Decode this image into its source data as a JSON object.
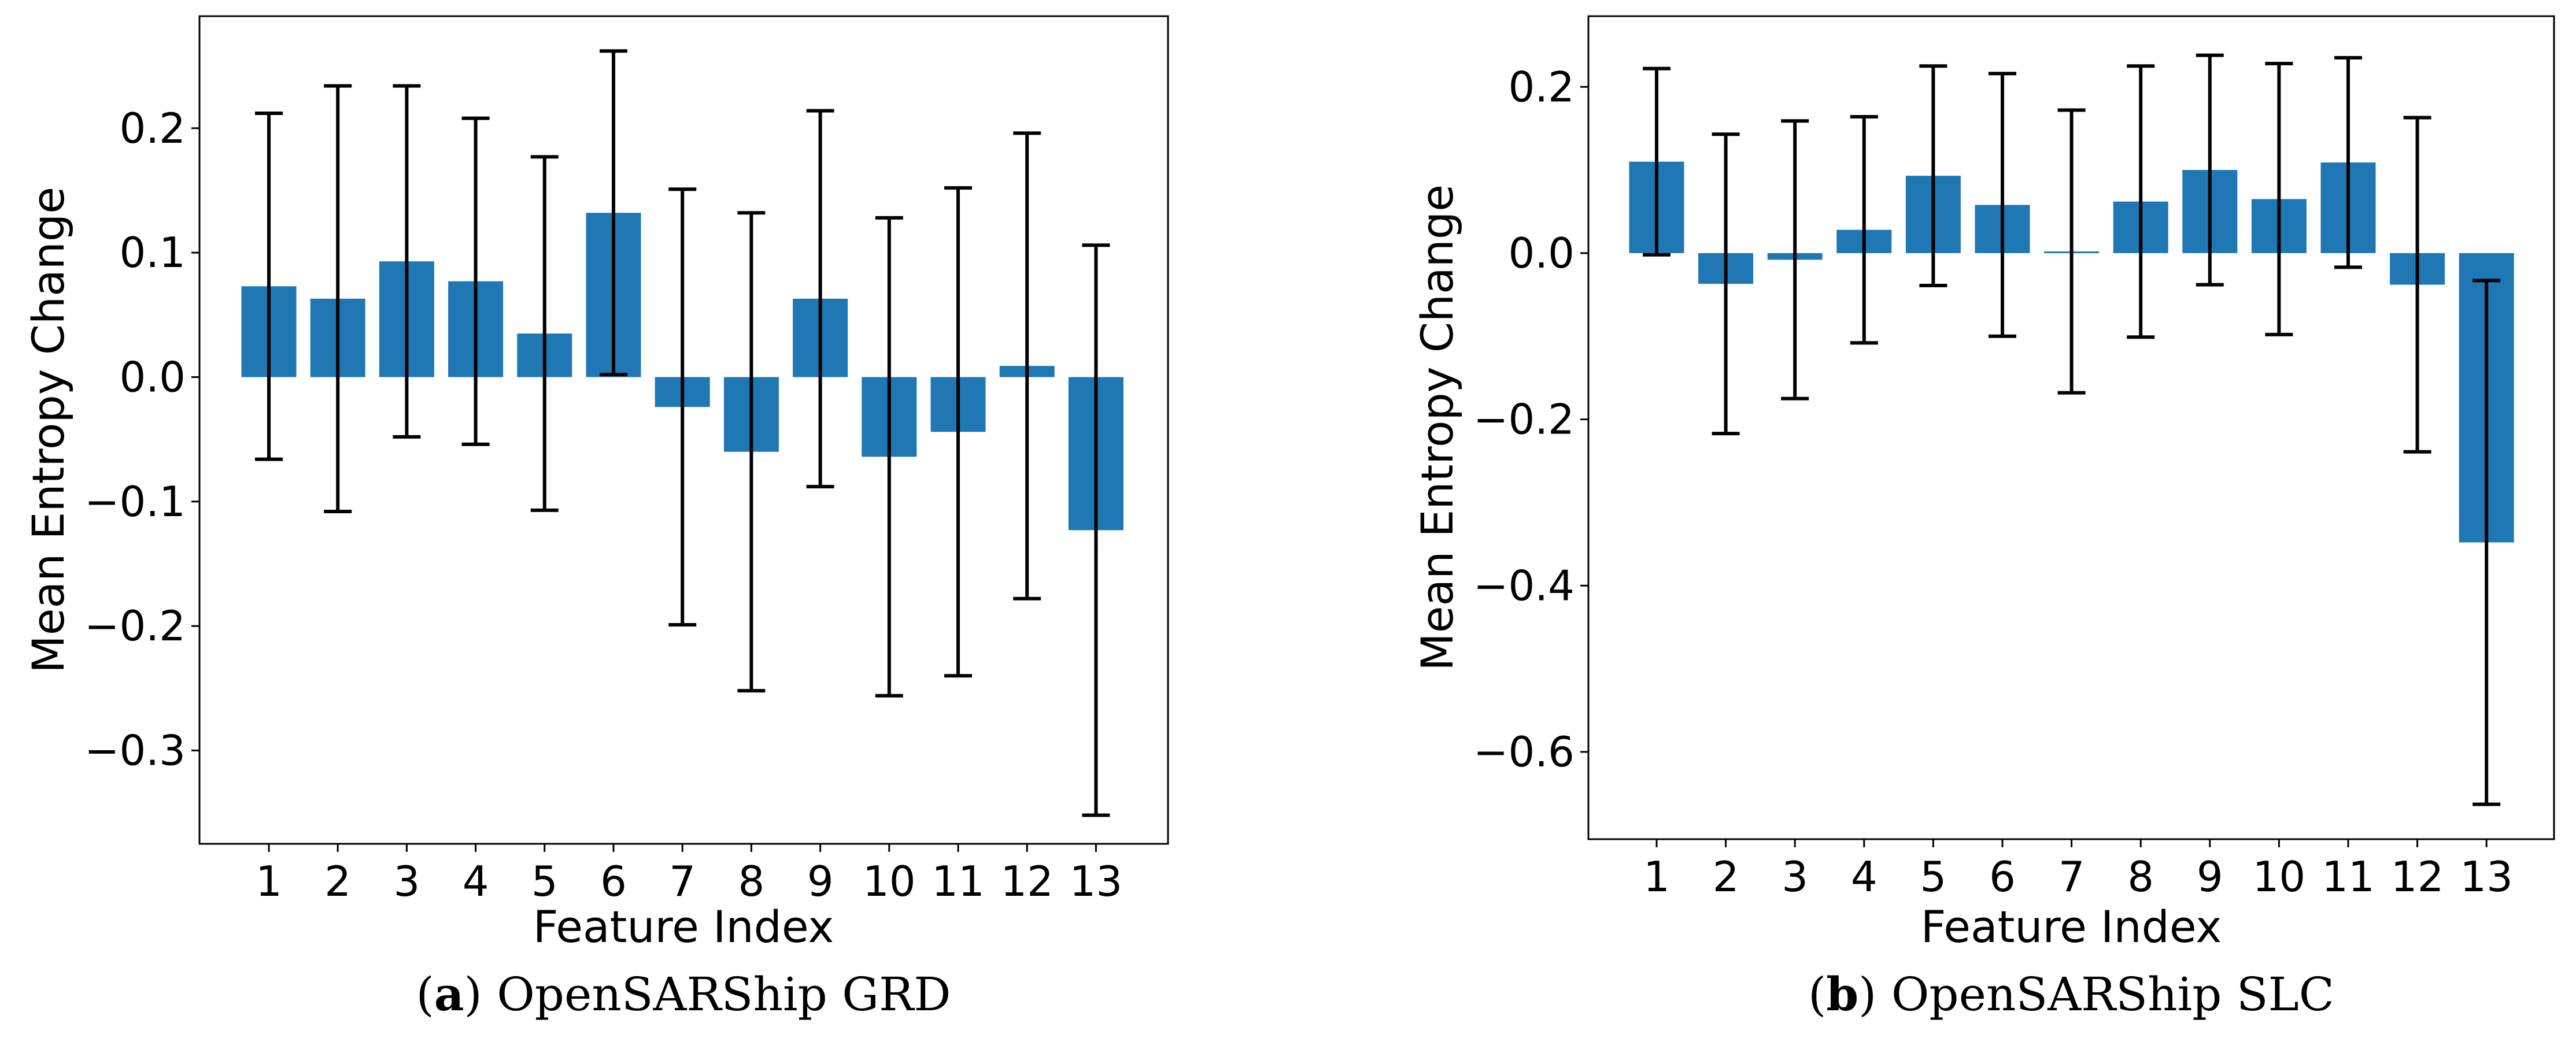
{
  "chart_data": [
    {
      "type": "bar",
      "caption_letter": "a",
      "caption_text": "OpenSARShip GRD",
      "xlabel": "Feature Index",
      "ylabel": "Mean Entropy Change",
      "categories": [
        "1",
        "2",
        "3",
        "4",
        "5",
        "6",
        "7",
        "8",
        "9",
        "10",
        "11",
        "12",
        "13"
      ],
      "values": [
        0.073,
        0.063,
        0.093,
        0.077,
        0.035,
        0.132,
        -0.024,
        -0.06,
        0.063,
        -0.064,
        -0.044,
        0.009,
        -0.123
      ],
      "error": [
        0.139,
        0.171,
        0.141,
        0.131,
        0.142,
        0.13,
        0.175,
        0.192,
        0.151,
        0.192,
        0.196,
        0.187,
        0.229
      ],
      "ylim": [
        -0.375,
        0.29
      ],
      "yticks": [
        0.2,
        0.1,
        0.0,
        -0.1,
        -0.2,
        -0.3
      ],
      "ytick_labels": [
        "0.2",
        "0.1",
        "0.0",
        "−0.1",
        "−0.2",
        "−0.3"
      ],
      "bar_color": "#1f77b4",
      "grid": false
    },
    {
      "type": "bar",
      "caption_letter": "b",
      "caption_text": "OpenSARShip SLC",
      "xlabel": "Feature Index",
      "ylabel": "Mean Entropy Change",
      "categories": [
        "1",
        "2",
        "3",
        "4",
        "5",
        "6",
        "7",
        "8",
        "9",
        "10",
        "11",
        "12",
        "13"
      ],
      "values": [
        0.11,
        -0.037,
        -0.008,
        0.028,
        0.093,
        0.058,
        0.002,
        0.062,
        0.1,
        0.065,
        0.109,
        -0.038,
        -0.348
      ],
      "error": [
        0.112,
        0.18,
        0.167,
        0.136,
        0.132,
        0.158,
        0.17,
        0.163,
        0.138,
        0.163,
        0.126,
        0.201,
        0.315
      ],
      "ylim": [
        -0.705,
        0.285
      ],
      "yticks": [
        0.2,
        0.0,
        -0.2,
        -0.4,
        -0.6
      ],
      "ytick_labels": [
        "0.2",
        "0.0",
        "−0.2",
        "−0.4",
        "−0.6"
      ],
      "bar_color": "#1f77b4",
      "grid": false
    }
  ]
}
